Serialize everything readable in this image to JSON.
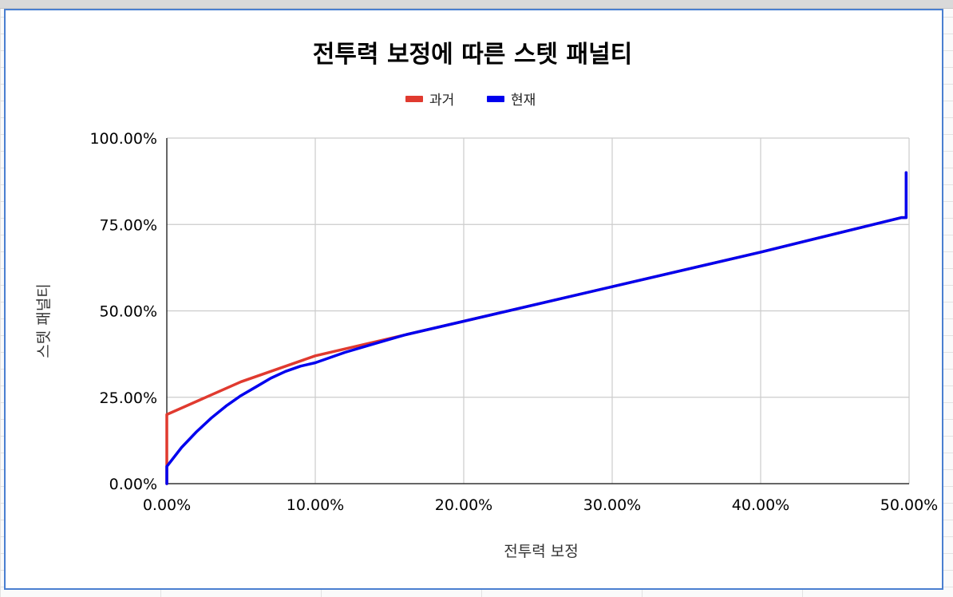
{
  "chart_data": {
    "type": "line",
    "title": "전투력 보정에 따른 스텟 패널티",
    "xlabel": "전투력 보정",
    "ylabel": "스텟 패널티",
    "xlim": [
      0,
      50
    ],
    "ylim": [
      0,
      100
    ],
    "x_ticks": [
      "0.00%",
      "10.00%",
      "20.00%",
      "30.00%",
      "40.00%",
      "50.00%"
    ],
    "y_ticks": [
      "0.00%",
      "25.00%",
      "50.00%",
      "75.00%",
      "100.00%"
    ],
    "legend_position": "top-center",
    "grid": true,
    "series": [
      {
        "name": "과거",
        "color": "#e03a2f",
        "x": [
          0,
          0,
          5,
          10,
          16,
          20,
          30,
          40,
          49.5,
          49.8,
          49.8
        ],
        "y": [
          0,
          20,
          29.5,
          37,
          43,
          47,
          57,
          67,
          77,
          77,
          90
        ]
      },
      {
        "name": "현재",
        "color": "#0000ee",
        "x": [
          0,
          0,
          1,
          2,
          3,
          4,
          5,
          6,
          7,
          8,
          9,
          10,
          12,
          14,
          16,
          20,
          30,
          40,
          49.5,
          49.8,
          49.8
        ],
        "y": [
          0,
          5,
          10.5,
          15,
          19,
          22.5,
          25.5,
          28,
          30.5,
          32.5,
          34,
          35,
          38,
          40.5,
          43,
          47,
          57,
          67,
          77,
          77,
          90
        ]
      }
    ]
  }
}
